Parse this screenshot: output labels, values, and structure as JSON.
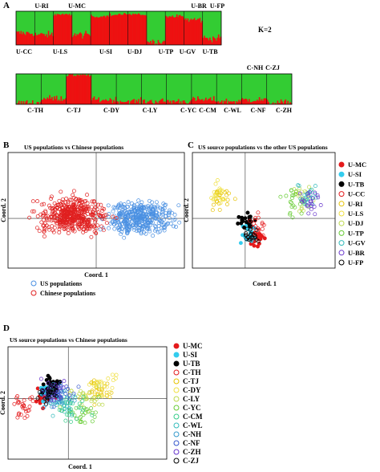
{
  "panel_labels": {
    "a": "A",
    "b": "B",
    "c": "C",
    "d": "D"
  },
  "structure": {
    "k_label": "K=2",
    "top_labels_upper": [
      "U-RI",
      "U-MC",
      "U-BR",
      "U-FP"
    ],
    "top_labels_lower": [
      "U-CC",
      "U-LS",
      "U-SI",
      "U-DJ",
      "U-TP",
      "U-GV",
      "U-TB"
    ],
    "bottom_labels_upper": [
      "C-NH",
      "C-ZJ"
    ],
    "bottom_labels_lower": [
      "C-TH",
      "C-TJ",
      "C-DY",
      "C-LY",
      "C-YC",
      "C-CM",
      "C-WL",
      "C-NF",
      "C-ZH"
    ],
    "colors": {
      "cluster1": "#ee1111",
      "cluster2": "#33cc33"
    }
  },
  "chart_data": [
    {
      "type": "bar",
      "stacked": true,
      "title": "",
      "xlabel": "",
      "ylabel": "",
      "ylim": [
        0,
        1
      ],
      "series": [
        {
          "name": "",
          "color": "#ee1111",
          "segments": [
            {
              "population": "U-CC",
              "mean_value": 0.35
            },
            {
              "population": "U-RI",
              "mean_value": 0.3
            },
            {
              "population": "U-MC",
              "mean_value": 0.9
            },
            {
              "population": "U-LS",
              "mean_value": 0.3
            },
            {
              "population": "U-SI",
              "mean_value": 0.85
            },
            {
              "population": "U-DJ",
              "mean_value": 0.9
            },
            {
              "population": "U-TP",
              "mean_value": 0.9
            },
            {
              "population": "U-GV",
              "mean_value": 0.1
            },
            {
              "population": "U-BR",
              "mean_value": 0.85
            },
            {
              "population": "U-TB",
              "mean_value": 0.75
            },
            {
              "population": "U-FP",
              "mean_value": 0.2
            }
          ]
        }
      ]
    },
    {
      "type": "bar",
      "stacked": true,
      "title": "",
      "xlabel": "",
      "ylabel": "",
      "ylim": [
        0,
        1
      ],
      "series": [
        {
          "name": "",
          "color": "#ee1111",
          "segments": [
            {
              "population": "C-TH",
              "mean_value": 0.05
            },
            {
              "population": "C-TJ",
              "mean_value": 0.2
            },
            {
              "population": "C-DY",
              "mean_value": 0.95
            },
            {
              "population": "C-LY",
              "mean_value": 0.15
            },
            {
              "population": "C-YC",
              "mean_value": 0.1
            },
            {
              "population": "C-CM",
              "mean_value": 0.1
            },
            {
              "population": "C-WL",
              "mean_value": 0.1
            },
            {
              "population": "C-NH",
              "mean_value": 0.15
            },
            {
              "population": "C-NF",
              "mean_value": 0.1
            },
            {
              "population": "C-ZJ",
              "mean_value": 0.15
            },
            {
              "population": "C-ZH",
              "mean_value": 0.05
            }
          ]
        }
      ]
    },
    {
      "type": "scatter",
      "title": "US populations vs Chinese populations",
      "xlabel": "Coord. 1",
      "ylabel": "Coord. 2",
      "legend_position": "bottom-left",
      "series": [
        {
          "name": "US populations",
          "color": "#4a90e2",
          "centroid": [
            0.45,
            0.0
          ],
          "spread": [
            0.35,
            0.25
          ],
          "n": 380
        },
        {
          "name": "Chinese populations",
          "color": "#e02020",
          "centroid": [
            -0.25,
            0.05
          ],
          "spread": [
            0.35,
            0.25
          ],
          "n": 450
        }
      ]
    },
    {
      "type": "scatter",
      "title": "US source populations vs the other US populations",
      "xlabel": "Coord. 1",
      "ylabel": "Coord. 2",
      "legend_position": "right",
      "series": [
        {
          "name": "U-MC",
          "color": "#e41a1c",
          "filled": true
        },
        {
          "name": "U-SI",
          "color": "#33ccee",
          "filled": true
        },
        {
          "name": "U-TB",
          "color": "#000000",
          "filled": true
        },
        {
          "name": "U-CC",
          "color": "#e41a1c",
          "filled": false
        },
        {
          "name": "U-RI",
          "color": "#e6c200",
          "filled": false
        },
        {
          "name": "U-LS",
          "color": "#f0e040",
          "filled": false
        },
        {
          "name": "U-DJ",
          "color": "#bcd84a",
          "filled": false
        },
        {
          "name": "U-TP",
          "color": "#66cc33",
          "filled": false
        },
        {
          "name": "U-GV",
          "color": "#33bbbb",
          "filled": false
        },
        {
          "name": "U-BR",
          "color": "#6633cc",
          "filled": false
        },
        {
          "name": "U-FP",
          "color": "#000000",
          "filled": false
        }
      ]
    },
    {
      "type": "scatter",
      "title": "US source populations vs Chinese populations",
      "xlabel": "Coord. 1",
      "ylabel": "Coord. 2",
      "legend_position": "right",
      "series": [
        {
          "name": "U-MC",
          "color": "#e41a1c",
          "filled": true
        },
        {
          "name": "U-SI",
          "color": "#33ccee",
          "filled": true
        },
        {
          "name": "U-TB",
          "color": "#000000",
          "filled": true
        },
        {
          "name": "C-TH",
          "color": "#e41a1c",
          "filled": false
        },
        {
          "name": "C-TJ",
          "color": "#e6c200",
          "filled": false
        },
        {
          "name": "C-DY",
          "color": "#f0e040",
          "filled": false
        },
        {
          "name": "C-LY",
          "color": "#bcd84a",
          "filled": false
        },
        {
          "name": "C-YC",
          "color": "#66cc33",
          "filled": false
        },
        {
          "name": "C-CM",
          "color": "#33cc88",
          "filled": false
        },
        {
          "name": "C-WL",
          "color": "#33bbbb",
          "filled": false
        },
        {
          "name": "C-NH",
          "color": "#3399cc",
          "filled": false
        },
        {
          "name": "C-NF",
          "color": "#3355cc",
          "filled": false
        },
        {
          "name": "C-ZH",
          "color": "#6633cc",
          "filled": false
        },
        {
          "name": "C-ZJ",
          "color": "#000000",
          "filled": false
        }
      ]
    }
  ]
}
